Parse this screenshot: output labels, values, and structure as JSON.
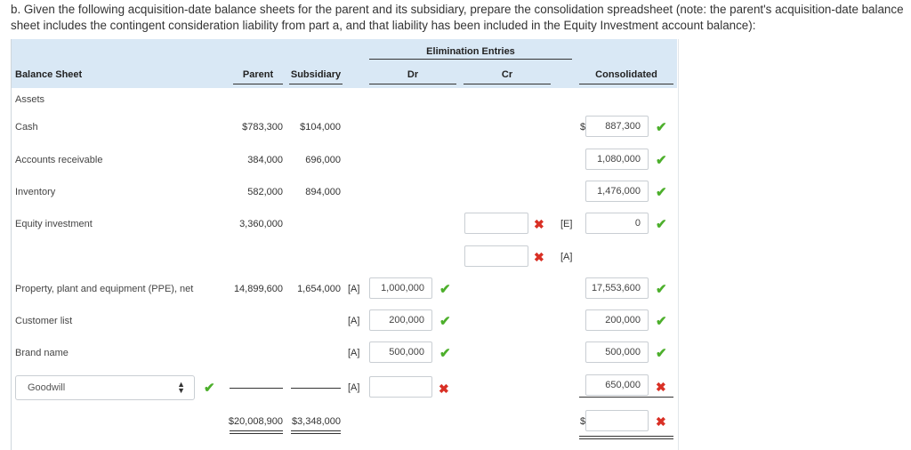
{
  "instructions": "b. Given the following acquisition-date balance sheets for the parent and its subsidiary, prepare the consolidation spreadsheet (note: the parent's acquisition-date balance sheet includes the contingent consideration liability from part a, and that liability has been included in the Equity Investment account balance):",
  "header": {
    "elimination_entries": "Elimination Entries",
    "balance_sheet": "Balance Sheet",
    "parent": "Parent",
    "subsidiary": "Subsidiary",
    "dr": "Dr",
    "cr": "Cr",
    "consolidated": "Consolidated"
  },
  "rows": {
    "assets": {
      "label": "Assets"
    },
    "cash": {
      "label": "Cash",
      "parent": "$783,300",
      "subsidiary": "$104,000",
      "consolidated": "887,300",
      "dollar": "$"
    },
    "ar": {
      "label": "Accounts receivable",
      "parent": "384,000",
      "subsidiary": "696,000",
      "consolidated": "1,080,000"
    },
    "inventory": {
      "label": "Inventory",
      "parent": "582,000",
      "subsidiary": "894,000",
      "consolidated": "1,476,000"
    },
    "equity": {
      "label": "Equity investment",
      "parent": "3,360,000",
      "cr_tag_1": "[E]",
      "cr_tag_2": "[A]",
      "consolidated": "0"
    },
    "ppe": {
      "label": "Property, plant and equipment (PPE), net",
      "parent": "14,899,600",
      "subsidiary": "1,654,000",
      "dr_tag": "[A]",
      "dr": "1,000,000",
      "consolidated": "17,553,600"
    },
    "customer": {
      "label": "Customer list",
      "dr_tag": "[A]",
      "dr": "200,000",
      "consolidated": "200,000"
    },
    "brand": {
      "label": "Brand name",
      "dr_tag": "[A]",
      "dr": "500,000",
      "consolidated": "500,000"
    },
    "goodwill": {
      "select_value": "Goodwill",
      "dr_tag": "[A]",
      "dr": "",
      "consolidated": "650,000"
    },
    "total": {
      "parent": "$20,008,900",
      "subsidiary": "$3,348,000",
      "dollar": "$",
      "consolidated": ""
    }
  },
  "icons": {
    "check": "checkmark-icon",
    "cross": "x-icon",
    "select_arrow": "up-down-arrow-icon"
  },
  "colors": {
    "header_bg": "#d9e8f5",
    "check": "#4caf2b",
    "cross": "#d93025"
  }
}
